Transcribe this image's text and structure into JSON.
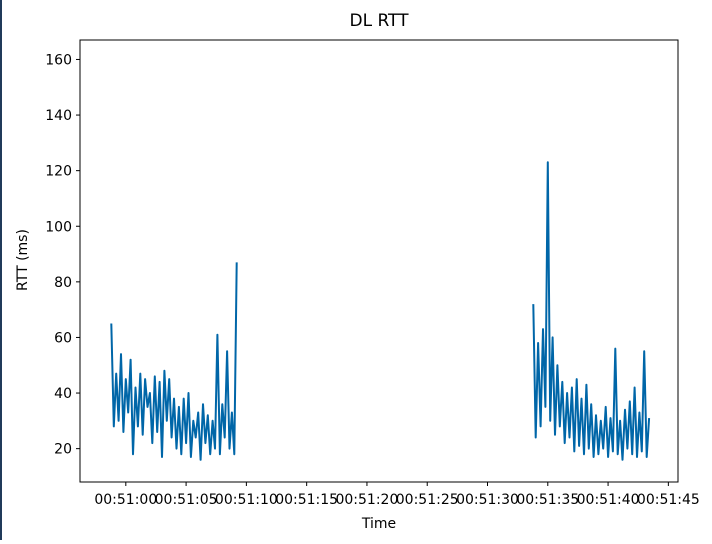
{
  "chart_data": {
    "type": "line",
    "title": "DL RTT",
    "xlabel": "Time",
    "ylabel": "RTT (ms)",
    "xlim": [
      "00:50:56.2",
      "00:51:45.8"
    ],
    "ylim": [
      8,
      167
    ],
    "xticks": [
      "00:51:00",
      "00:51:05",
      "00:51:10",
      "00:51:15",
      "00:51:20",
      "00:51:25",
      "00:51:30",
      "00:51:35",
      "00:51:40",
      "00:51:45"
    ],
    "yticks": [
      20,
      40,
      60,
      80,
      100,
      120,
      140,
      160
    ],
    "grid": false,
    "line_color": "#0066a8",
    "series": [
      {
        "name": "",
        "segments": [
          {
            "x": [
              "00:50:58.8",
              "00:50:59.0",
              "00:50:59.2",
              "00:50:59.4",
              "00:50:59.6",
              "00:50:59.8",
              "00:51:00.0",
              "00:51:00.2",
              "00:51:00.4",
              "00:51:00.6",
              "00:51:00.8",
              "00:51:01.0",
              "00:51:01.2",
              "00:51:01.4",
              "00:51:01.6",
              "00:51:01.8",
              "00:51:02.0",
              "00:51:02.2",
              "00:51:02.4",
              "00:51:02.6",
              "00:51:02.8",
              "00:51:03.0",
              "00:51:03.2",
              "00:51:03.4",
              "00:51:03.6",
              "00:51:03.8",
              "00:51:04.0",
              "00:51:04.2",
              "00:51:04.4",
              "00:51:04.6",
              "00:51:04.8",
              "00:51:05.0",
              "00:51:05.2",
              "00:51:05.4",
              "00:51:05.6",
              "00:51:05.8",
              "00:51:06.0",
              "00:51:06.2",
              "00:51:06.4",
              "00:51:06.6",
              "00:51:06.8",
              "00:51:07.0",
              "00:51:07.2",
              "00:51:07.4",
              "00:51:07.6",
              "00:51:07.8",
              "00:51:08.0",
              "00:51:08.2",
              "00:51:08.4",
              "00:51:08.6",
              "00:51:08.8",
              "00:51:09.0",
              "00:51:09.2"
            ],
            "y": [
              65,
              28,
              47,
              30,
              54,
              26,
              45,
              33,
              52,
              18,
              42,
              28,
              47,
              25,
              45,
              35,
              40,
              22,
              46,
              26,
              44,
              17,
              48,
              30,
              45,
              24,
              38,
              20,
              35,
              18,
              38,
              22,
              40,
              17,
              30,
              24,
              33,
              16,
              36,
              22,
              32,
              18,
              30,
              20,
              61,
              18,
              36,
              24,
              55,
              20,
              33,
              18,
              87
            ]
          },
          {
            "x": [
              "00:51:33.8",
              "00:51:34.0",
              "00:51:34.2",
              "00:51:34.4",
              "00:51:34.6",
              "00:51:34.8",
              "00:51:35.0",
              "00:51:35.2",
              "00:51:35.4",
              "00:51:35.6",
              "00:51:35.8",
              "00:51:36.0",
              "00:51:36.2",
              "00:51:36.4",
              "00:51:36.6",
              "00:51:36.8",
              "00:51:37.0",
              "00:51:37.2",
              "00:51:37.4",
              "00:51:37.6",
              "00:51:37.8",
              "00:51:38.0",
              "00:51:38.2",
              "00:51:38.4",
              "00:51:38.6",
              "00:51:38.8",
              "00:51:39.0",
              "00:51:39.2",
              "00:51:39.4",
              "00:51:39.6",
              "00:51:39.8",
              "00:51:40.0",
              "00:51:40.2",
              "00:51:40.4",
              "00:51:40.6",
              "00:51:40.8",
              "00:51:41.0",
              "00:51:41.2",
              "00:51:41.4",
              "00:51:41.6",
              "00:51:41.8",
              "00:51:42.0",
              "00:51:42.2",
              "00:51:42.4",
              "00:51:42.6",
              "00:51:42.8",
              "00:51:43.0",
              "00:51:43.2",
              "00:51:43.4"
            ],
            "y": [
              72,
              24,
              58,
              28,
              63,
              35,
              123,
              30,
              60,
              25,
              50,
              28,
              44,
              22,
              40,
              24,
              42,
              19,
              45,
              21,
              38,
              18,
              43,
              20,
              36,
              17,
              32,
              18,
              30,
              20,
              35,
              17,
              31,
              19,
              56,
              18,
              30,
              16,
              34,
              20,
              37,
              18,
              42,
              17,
              33,
              19,
              55,
              17,
              31
            ]
          }
        ]
      }
    ]
  }
}
